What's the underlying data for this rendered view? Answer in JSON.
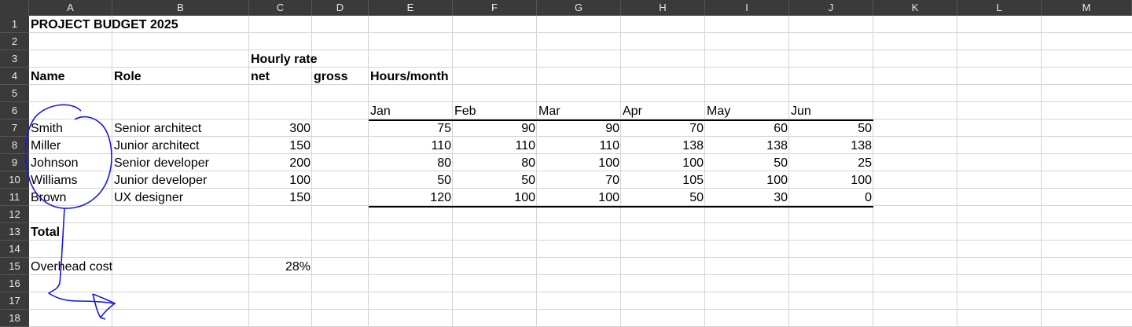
{
  "columns": [
    "A",
    "B",
    "C",
    "D",
    "E",
    "F",
    "G",
    "H",
    "I",
    "J",
    "K",
    "L",
    "M"
  ],
  "rows": [
    "1",
    "2",
    "3",
    "4",
    "5",
    "6",
    "7",
    "8",
    "9",
    "10",
    "11",
    "12",
    "13",
    "14",
    "15",
    "16",
    "17",
    "18"
  ],
  "sheet": {
    "title": "PROJECT BUDGET 2025",
    "hourly_rate_label": "Hourly rate",
    "header_name": "Name",
    "header_role": "Role",
    "header_net": "net",
    "header_gross": "gross",
    "header_hours": "Hours/month",
    "months": [
      "Jan",
      "Feb",
      "Mar",
      "Apr",
      "May",
      "Jun"
    ],
    "people": [
      {
        "name": "Smith",
        "role": "Senior architect",
        "rate": "300",
        "hours": [
          "75",
          "90",
          "90",
          "70",
          "60",
          "50"
        ]
      },
      {
        "name": "Miller",
        "role": "Junior architect",
        "rate": "150",
        "hours": [
          "110",
          "110",
          "110",
          "138",
          "138",
          "138"
        ]
      },
      {
        "name": "Johnson",
        "role": "Senior developer",
        "rate": "200",
        "hours": [
          "80",
          "80",
          "100",
          "100",
          "50",
          "25"
        ]
      },
      {
        "name": "Williams",
        "role": "Junior developer",
        "rate": "100",
        "hours": [
          "50",
          "50",
          "70",
          "105",
          "100",
          "100"
        ]
      },
      {
        "name": "Brown",
        "role": "UX designer",
        "rate": "150",
        "hours": [
          "120",
          "100",
          "100",
          "50",
          "30",
          "0"
        ]
      }
    ],
    "total_label": "Total",
    "overhead_label": "Overhead cost",
    "overhead_value": "28%"
  },
  "annotation_color": "#1a1ad6"
}
